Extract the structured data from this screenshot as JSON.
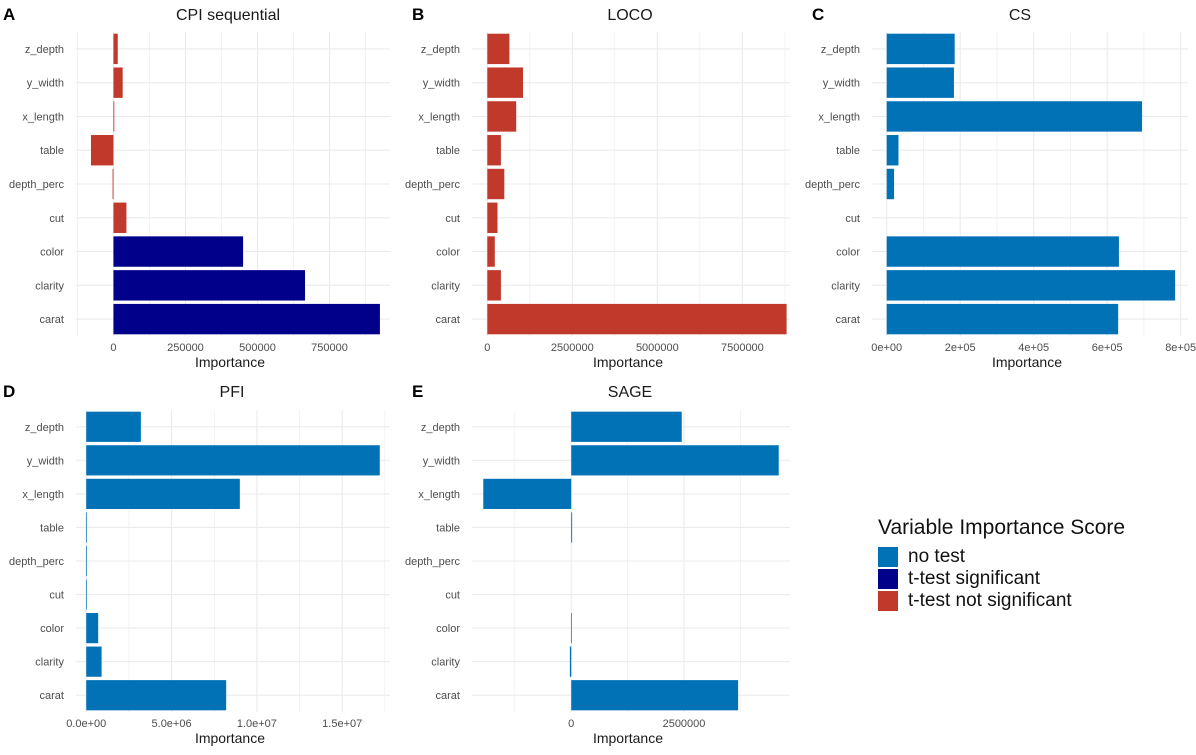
{
  "colors": {
    "no_test": "#0072b5",
    "sig": "#00008b",
    "not_sig": "#c0392b",
    "grid": "#ebebeb"
  },
  "legend": {
    "title": "Variable Importance Score",
    "items": [
      {
        "label": "no test",
        "key": "no_test"
      },
      {
        "label": "t-test significant",
        "key": "sig"
      },
      {
        "label": "t-test not significant",
        "key": "not_sig"
      }
    ]
  },
  "chart_data": [
    {
      "panel": "A",
      "title": "CPI sequential",
      "type": "bar",
      "orientation": "horizontal",
      "xlabel": "Importance",
      "categories": [
        "z_depth",
        "y_width",
        "x_length",
        "table",
        "depth_perc",
        "cut",
        "color",
        "clarity",
        "carat"
      ],
      "values": [
        15000,
        32000,
        3000,
        -78000,
        -3000,
        45000,
        450000,
        665000,
        925000
      ],
      "groups": [
        "not_sig",
        "not_sig",
        "not_sig",
        "not_sig",
        "not_sig",
        "not_sig",
        "sig",
        "sig",
        "sig"
      ],
      "xlim": [
        -130000,
        960000
      ],
      "ticks": [
        0,
        250000,
        500000,
        750000
      ],
      "tick_labels": [
        "0",
        "250000",
        "500000",
        "750000"
      ]
    },
    {
      "panel": "B",
      "title": "LOCO",
      "type": "bar",
      "orientation": "horizontal",
      "xlabel": "Importance",
      "categories": [
        "z_depth",
        "y_width",
        "x_length",
        "table",
        "depth_perc",
        "cut",
        "color",
        "clarity",
        "carat"
      ],
      "values": [
        650000,
        1050000,
        850000,
        400000,
        500000,
        300000,
        220000,
        400000,
        8800000
      ],
      "groups": [
        "not_sig",
        "not_sig",
        "not_sig",
        "not_sig",
        "not_sig",
        "not_sig",
        "not_sig",
        "not_sig",
        "not_sig"
      ],
      "xlim": [
        -450000,
        8900000
      ],
      "ticks": [
        0,
        2500000,
        5000000,
        7500000
      ],
      "tick_labels": [
        "0",
        "2500000",
        "5000000",
        "7500000"
      ]
    },
    {
      "panel": "C",
      "title": "CS",
      "type": "bar",
      "orientation": "horizontal",
      "xlabel": "Importance",
      "categories": [
        "z_depth",
        "y_width",
        "x_length",
        "table",
        "depth_perc",
        "cut",
        "color",
        "clarity",
        "carat"
      ],
      "values": [
        185000,
        183000,
        695000,
        32000,
        20000,
        0,
        632000,
        785000,
        630000
      ],
      "groups": [
        "no_test",
        "no_test",
        "no_test",
        "no_test",
        "no_test",
        "no_test",
        "no_test",
        "no_test",
        "no_test"
      ],
      "xlim": [
        -40000,
        820000
      ],
      "ticks": [
        0,
        200000,
        400000,
        600000,
        800000
      ],
      "tick_labels": [
        "0e+00",
        "2e+05",
        "4e+05",
        "6e+05",
        "8e+05"
      ]
    },
    {
      "panel": "D",
      "title": "PFI",
      "type": "bar",
      "orientation": "horizontal",
      "xlabel": "Importance",
      "categories": [
        "z_depth",
        "y_width",
        "x_length",
        "table",
        "depth_perc",
        "cut",
        "color",
        "clarity",
        "carat"
      ],
      "values": [
        3200000,
        17200000,
        9000000,
        40000,
        40000,
        40000,
        700000,
        900000,
        8200000
      ],
      "groups": [
        "no_test",
        "no_test",
        "no_test",
        "no_test",
        "no_test",
        "no_test",
        "no_test",
        "no_test",
        "no_test"
      ],
      "xlim": [
        -600000,
        17800000
      ],
      "ticks": [
        0,
        5000000,
        10000000,
        15000000
      ],
      "tick_labels": [
        "0.0e+00",
        "5.0e+06",
        "1.0e+07",
        "1.5e+07"
      ]
    },
    {
      "panel": "E",
      "title": "SAGE",
      "type": "bar",
      "orientation": "horizontal",
      "xlabel": "Importance",
      "categories": [
        "z_depth",
        "y_width",
        "x_length",
        "table",
        "depth_perc",
        "cut",
        "color",
        "clarity",
        "carat"
      ],
      "values": [
        2450000,
        4600000,
        -1950000,
        20000,
        0,
        0,
        15000,
        -30000,
        3700000
      ],
      "groups": [
        "no_test",
        "no_test",
        "no_test",
        "no_test",
        "no_test",
        "no_test",
        "no_test",
        "no_test",
        "no_test"
      ],
      "xlim": [
        -2200000,
        4850000
      ],
      "ticks": [
        0,
        2500000
      ],
      "tick_labels": [
        "0",
        "2500000"
      ]
    }
  ]
}
